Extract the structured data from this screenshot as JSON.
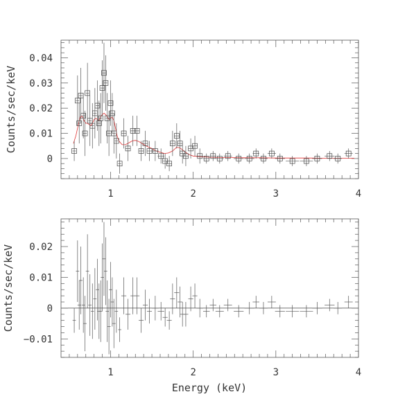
{
  "chart_data": [
    {
      "type": "scatter",
      "panel": "top",
      "xlabel": "",
      "ylabel": "Counts/sec/keV",
      "xlim": [
        0.4,
        4.0
      ],
      "ylim": [
        -0.008,
        0.047
      ],
      "x_ticks": [
        {
          "v": 1,
          "label": "1"
        },
        {
          "v": 2,
          "label": "2"
        },
        {
          "v": 3,
          "label": "3"
        },
        {
          "v": 4,
          "label": "4"
        }
      ],
      "y_ticks": [
        {
          "v": 0,
          "label": "0"
        },
        {
          "v": 0.01,
          "label": "0.01"
        },
        {
          "v": 0.02,
          "label": "0.02"
        },
        {
          "v": 0.03,
          "label": "0.03"
        },
        {
          "v": 0.04,
          "label": "0.04"
        }
      ],
      "series": [
        {
          "marker": "open-square",
          "color": "#444444",
          "points": [
            {
              "x": 0.56,
              "y": 0.003,
              "dx": 0.02,
              "dy": 0.004
            },
            {
              "x": 0.6,
              "y": 0.023,
              "dx": 0.02,
              "dy": 0.01
            },
            {
              "x": 0.62,
              "y": 0.014,
              "dx": 0.02,
              "dy": 0.008
            },
            {
              "x": 0.64,
              "y": 0.025,
              "dx": 0.02,
              "dy": 0.011
            },
            {
              "x": 0.67,
              "y": 0.017,
              "dx": 0.02,
              "dy": 0.009
            },
            {
              "x": 0.69,
              "y": 0.01,
              "dx": 0.02,
              "dy": 0.009
            },
            {
              "x": 0.72,
              "y": 0.026,
              "dx": 0.02,
              "dy": 0.012
            },
            {
              "x": 0.75,
              "y": 0.015,
              "dx": 0.02,
              "dy": 0.01
            },
            {
              "x": 0.78,
              "y": 0.013,
              "dx": 0.02,
              "dy": 0.009
            },
            {
              "x": 0.81,
              "y": 0.018,
              "dx": 0.02,
              "dy": 0.01
            },
            {
              "x": 0.84,
              "y": 0.021,
              "dx": 0.02,
              "dy": 0.01
            },
            {
              "x": 0.86,
              "y": 0.014,
              "dx": 0.02,
              "dy": 0.009
            },
            {
              "x": 0.88,
              "y": 0.016,
              "dx": 0.02,
              "dy": 0.01
            },
            {
              "x": 0.9,
              "y": 0.028,
              "dx": 0.02,
              "dy": 0.011
            },
            {
              "x": 0.92,
              "y": 0.034,
              "dx": 0.02,
              "dy": 0.012
            },
            {
              "x": 0.94,
              "y": 0.03,
              "dx": 0.02,
              "dy": 0.011
            },
            {
              "x": 0.96,
              "y": 0.016,
              "dx": 0.02,
              "dy": 0.01
            },
            {
              "x": 0.98,
              "y": 0.01,
              "dx": 0.02,
              "dy": 0.009
            },
            {
              "x": 1.0,
              "y": 0.022,
              "dx": 0.02,
              "dy": 0.009
            },
            {
              "x": 1.02,
              "y": 0.018,
              "dx": 0.02,
              "dy": 0.008
            },
            {
              "x": 1.04,
              "y": 0.01,
              "dx": 0.02,
              "dy": 0.008
            },
            {
              "x": 1.07,
              "y": 0.007,
              "dx": 0.02,
              "dy": 0.007
            },
            {
              "x": 1.11,
              "y": -0.002,
              "dx": 0.02,
              "dy": 0.004
            },
            {
              "x": 1.16,
              "y": 0.01,
              "dx": 0.03,
              "dy": 0.006
            },
            {
              "x": 1.21,
              "y": 0.004,
              "dx": 0.03,
              "dy": 0.005
            },
            {
              "x": 1.27,
              "y": 0.011,
              "dx": 0.03,
              "dy": 0.006
            },
            {
              "x": 1.32,
              "y": 0.011,
              "dx": 0.03,
              "dy": 0.006
            },
            {
              "x": 1.37,
              "y": 0.003,
              "dx": 0.03,
              "dy": 0.004
            },
            {
              "x": 1.42,
              "y": 0.006,
              "dx": 0.03,
              "dy": 0.005
            },
            {
              "x": 1.47,
              "y": 0.003,
              "dx": 0.03,
              "dy": 0.004
            },
            {
              "x": 1.54,
              "y": 0.003,
              "dx": 0.04,
              "dy": 0.004
            },
            {
              "x": 1.61,
              "y": 0.001,
              "dx": 0.04,
              "dy": 0.003
            },
            {
              "x": 1.66,
              "y": -0.001,
              "dx": 0.03,
              "dy": 0.003
            },
            {
              "x": 1.71,
              "y": -0.002,
              "dx": 0.03,
              "dy": 0.003
            },
            {
              "x": 1.75,
              "y": 0.006,
              "dx": 0.03,
              "dy": 0.005
            },
            {
              "x": 1.8,
              "y": 0.009,
              "dx": 0.03,
              "dy": 0.005
            },
            {
              "x": 1.84,
              "y": 0.006,
              "dx": 0.03,
              "dy": 0.005
            },
            {
              "x": 1.87,
              "y": 0.002,
              "dx": 0.03,
              "dy": 0.004
            },
            {
              "x": 1.91,
              "y": 0.001,
              "dx": 0.03,
              "dy": 0.004
            },
            {
              "x": 1.97,
              "y": 0.004,
              "dx": 0.03,
              "dy": 0.004
            },
            {
              "x": 2.02,
              "y": 0.005,
              "dx": 0.03,
              "dy": 0.004
            },
            {
              "x": 2.08,
              "y": 0.001,
              "dx": 0.04,
              "dy": 0.003
            },
            {
              "x": 2.16,
              "y": 0.0,
              "dx": 0.04,
              "dy": 0.002
            },
            {
              "x": 2.24,
              "y": 0.001,
              "dx": 0.04,
              "dy": 0.002
            },
            {
              "x": 2.32,
              "y": 0.0,
              "dx": 0.05,
              "dy": 0.002
            },
            {
              "x": 2.42,
              "y": 0.001,
              "dx": 0.05,
              "dy": 0.002
            },
            {
              "x": 2.55,
              "y": 0.0,
              "dx": 0.06,
              "dy": 0.002
            },
            {
              "x": 2.68,
              "y": 0.0,
              "dx": 0.06,
              "dy": 0.002
            },
            {
              "x": 2.76,
              "y": 0.002,
              "dx": 0.04,
              "dy": 0.002
            },
            {
              "x": 2.85,
              "y": 0.0,
              "dx": 0.05,
              "dy": 0.002
            },
            {
              "x": 2.95,
              "y": 0.002,
              "dx": 0.05,
              "dy": 0.002
            },
            {
              "x": 3.05,
              "y": 0.0,
              "dx": 0.06,
              "dy": 0.002
            },
            {
              "x": 3.2,
              "y": -0.001,
              "dx": 0.08,
              "dy": 0.002
            },
            {
              "x": 3.37,
              "y": -0.001,
              "dx": 0.08,
              "dy": 0.002
            },
            {
              "x": 3.5,
              "y": 0.0,
              "dx": 0.06,
              "dy": 0.002
            },
            {
              "x": 3.65,
              "y": 0.001,
              "dx": 0.06,
              "dy": 0.002
            },
            {
              "x": 3.75,
              "y": 0.0,
              "dx": 0.05,
              "dy": 0.002
            },
            {
              "x": 3.88,
              "y": 0.002,
              "dx": 0.05,
              "dy": 0.002
            }
          ]
        }
      ],
      "model": {
        "color": "#e03030",
        "x": [
          0.55,
          0.58,
          0.6,
          0.62,
          0.64,
          0.66,
          0.68,
          0.7,
          0.72,
          0.74,
          0.76,
          0.78,
          0.8,
          0.82,
          0.84,
          0.86,
          0.88,
          0.9,
          0.92,
          0.94,
          0.96,
          0.98,
          1.0,
          1.02,
          1.04,
          1.06,
          1.08,
          1.1,
          1.14,
          1.18,
          1.22,
          1.26,
          1.3,
          1.34,
          1.38,
          1.42,
          1.46,
          1.5,
          1.55,
          1.6,
          1.65,
          1.7,
          1.75,
          1.8,
          1.84,
          1.88,
          1.92,
          1.96,
          2.0,
          2.1,
          2.2,
          2.4,
          2.6,
          2.8,
          3.0,
          3.2,
          3.4,
          3.6,
          3.8,
          3.95
        ],
        "y": [
          0.006,
          0.009,
          0.012,
          0.015,
          0.017,
          0.0165,
          0.015,
          0.014,
          0.014,
          0.0135,
          0.013,
          0.014,
          0.0155,
          0.016,
          0.0155,
          0.015,
          0.0165,
          0.0175,
          0.018,
          0.0175,
          0.0165,
          0.0155,
          0.016,
          0.0165,
          0.015,
          0.012,
          0.009,
          0.007,
          0.0055,
          0.0055,
          0.0062,
          0.007,
          0.0072,
          0.0068,
          0.006,
          0.0052,
          0.0045,
          0.004,
          0.003,
          0.0025,
          0.002,
          0.0022,
          0.003,
          0.0045,
          0.0042,
          0.0032,
          0.0022,
          0.0014,
          0.001,
          0.0007,
          0.0005,
          0.0004,
          0.0003,
          0.0003,
          0.0002,
          0.0002,
          0.0002,
          0.0001,
          0.0001,
          0.0001
        ]
      }
    },
    {
      "type": "scatter",
      "panel": "bottom",
      "xlabel": "Energy (keV)",
      "ylabel": "Counts/sec/keV",
      "xlim": [
        0.4,
        4.0
      ],
      "ylim": [
        -0.016,
        0.029
      ],
      "x_ticks": [
        {
          "v": 1,
          "label": "1"
        },
        {
          "v": 2,
          "label": "2"
        },
        {
          "v": 3,
          "label": "3"
        },
        {
          "v": 4,
          "label": "4"
        }
      ],
      "y_ticks": [
        {
          "v": -0.01,
          "label": "−0.01"
        },
        {
          "v": 0,
          "label": "0"
        },
        {
          "v": 0.01,
          "label": "0.01"
        },
        {
          "v": 0.02,
          "label": "0.02"
        }
      ],
      "series": [
        {
          "marker": "cross",
          "color": "#444444",
          "points": [
            {
              "x": 0.56,
              "y": -0.004,
              "dx": 0.02,
              "dy": 0.004
            },
            {
              "x": 0.6,
              "y": 0.012,
              "dx": 0.02,
              "dy": 0.01
            },
            {
              "x": 0.62,
              "y": 0.001,
              "dx": 0.02,
              "dy": 0.008
            },
            {
              "x": 0.64,
              "y": 0.009,
              "dx": 0.02,
              "dy": 0.011
            },
            {
              "x": 0.67,
              "y": 0.001,
              "dx": 0.02,
              "dy": 0.009
            },
            {
              "x": 0.69,
              "y": -0.005,
              "dx": 0.02,
              "dy": 0.009
            },
            {
              "x": 0.72,
              "y": 0.012,
              "dx": 0.02,
              "dy": 0.012
            },
            {
              "x": 0.75,
              "y": 0.001,
              "dx": 0.02,
              "dy": 0.01
            },
            {
              "x": 0.78,
              "y": -0.001,
              "dx": 0.02,
              "dy": 0.009
            },
            {
              "x": 0.81,
              "y": 0.003,
              "dx": 0.02,
              "dy": 0.01
            },
            {
              "x": 0.84,
              "y": 0.006,
              "dx": 0.02,
              "dy": 0.01
            },
            {
              "x": 0.86,
              "y": -0.001,
              "dx": 0.02,
              "dy": 0.009
            },
            {
              "x": 0.88,
              "y": -0.001,
              "dx": 0.02,
              "dy": 0.01
            },
            {
              "x": 0.9,
              "y": 0.01,
              "dx": 0.02,
              "dy": 0.011
            },
            {
              "x": 0.92,
              "y": 0.016,
              "dx": 0.02,
              "dy": 0.012
            },
            {
              "x": 0.94,
              "y": 0.012,
              "dx": 0.02,
              "dy": 0.011
            },
            {
              "x": 0.96,
              "y": -0.001,
              "dx": 0.02,
              "dy": 0.01
            },
            {
              "x": 0.98,
              "y": -0.006,
              "dx": 0.02,
              "dy": 0.009
            },
            {
              "x": 1.0,
              "y": 0.006,
              "dx": 0.02,
              "dy": 0.009
            },
            {
              "x": 1.02,
              "y": 0.002,
              "dx": 0.02,
              "dy": 0.008
            },
            {
              "x": 1.04,
              "y": -0.005,
              "dx": 0.02,
              "dy": 0.008
            },
            {
              "x": 1.07,
              "y": -0.001,
              "dx": 0.02,
              "dy": 0.007
            },
            {
              "x": 1.11,
              "y": -0.007,
              "dx": 0.02,
              "dy": 0.004
            },
            {
              "x": 1.16,
              "y": 0.004,
              "dx": 0.03,
              "dy": 0.006
            },
            {
              "x": 1.21,
              "y": -0.002,
              "dx": 0.03,
              "dy": 0.005
            },
            {
              "x": 1.27,
              "y": 0.004,
              "dx": 0.03,
              "dy": 0.006
            },
            {
              "x": 1.32,
              "y": 0.004,
              "dx": 0.03,
              "dy": 0.006
            },
            {
              "x": 1.37,
              "y": -0.004,
              "dx": 0.03,
              "dy": 0.004
            },
            {
              "x": 1.42,
              "y": 0.001,
              "dx": 0.03,
              "dy": 0.005
            },
            {
              "x": 1.47,
              "y": -0.001,
              "dx": 0.03,
              "dy": 0.004
            },
            {
              "x": 1.54,
              "y": 0.0,
              "dx": 0.04,
              "dy": 0.004
            },
            {
              "x": 1.61,
              "y": -0.001,
              "dx": 0.04,
              "dy": 0.003
            },
            {
              "x": 1.66,
              "y": -0.003,
              "dx": 0.03,
              "dy": 0.003
            },
            {
              "x": 1.71,
              "y": -0.004,
              "dx": 0.03,
              "dy": 0.003
            },
            {
              "x": 1.75,
              "y": 0.003,
              "dx": 0.03,
              "dy": 0.005
            },
            {
              "x": 1.8,
              "y": 0.005,
              "dx": 0.03,
              "dy": 0.005
            },
            {
              "x": 1.84,
              "y": 0.002,
              "dx": 0.03,
              "dy": 0.005
            },
            {
              "x": 1.87,
              "y": -0.002,
              "dx": 0.03,
              "dy": 0.004
            },
            {
              "x": 1.91,
              "y": -0.002,
              "dx": 0.03,
              "dy": 0.004
            },
            {
              "x": 1.97,
              "y": 0.003,
              "dx": 0.03,
              "dy": 0.004
            },
            {
              "x": 2.02,
              "y": 0.004,
              "dx": 0.03,
              "dy": 0.004
            },
            {
              "x": 2.08,
              "y": 0.0,
              "dx": 0.04,
              "dy": 0.003
            },
            {
              "x": 2.16,
              "y": -0.001,
              "dx": 0.04,
              "dy": 0.002
            },
            {
              "x": 2.24,
              "y": 0.001,
              "dx": 0.04,
              "dy": 0.002
            },
            {
              "x": 2.32,
              "y": -0.001,
              "dx": 0.05,
              "dy": 0.002
            },
            {
              "x": 2.42,
              "y": 0.001,
              "dx": 0.05,
              "dy": 0.002
            },
            {
              "x": 2.55,
              "y": -0.001,
              "dx": 0.06,
              "dy": 0.002
            },
            {
              "x": 2.68,
              "y": 0.0,
              "dx": 0.06,
              "dy": 0.002
            },
            {
              "x": 2.76,
              "y": 0.002,
              "dx": 0.04,
              "dy": 0.002
            },
            {
              "x": 2.85,
              "y": 0.0,
              "dx": 0.05,
              "dy": 0.002
            },
            {
              "x": 2.95,
              "y": 0.002,
              "dx": 0.05,
              "dy": 0.002
            },
            {
              "x": 3.05,
              "y": -0.001,
              "dx": 0.06,
              "dy": 0.002
            },
            {
              "x": 3.2,
              "y": -0.001,
              "dx": 0.08,
              "dy": 0.002
            },
            {
              "x": 3.37,
              "y": -0.001,
              "dx": 0.08,
              "dy": 0.002
            },
            {
              "x": 3.5,
              "y": 0.0,
              "dx": 0.06,
              "dy": 0.002
            },
            {
              "x": 3.65,
              "y": 0.001,
              "dx": 0.06,
              "dy": 0.002
            },
            {
              "x": 3.75,
              "y": 0.0,
              "dx": 0.05,
              "dy": 0.002
            },
            {
              "x": 3.88,
              "y": 0.002,
              "dx": 0.05,
              "dy": 0.002
            }
          ]
        }
      ]
    }
  ]
}
